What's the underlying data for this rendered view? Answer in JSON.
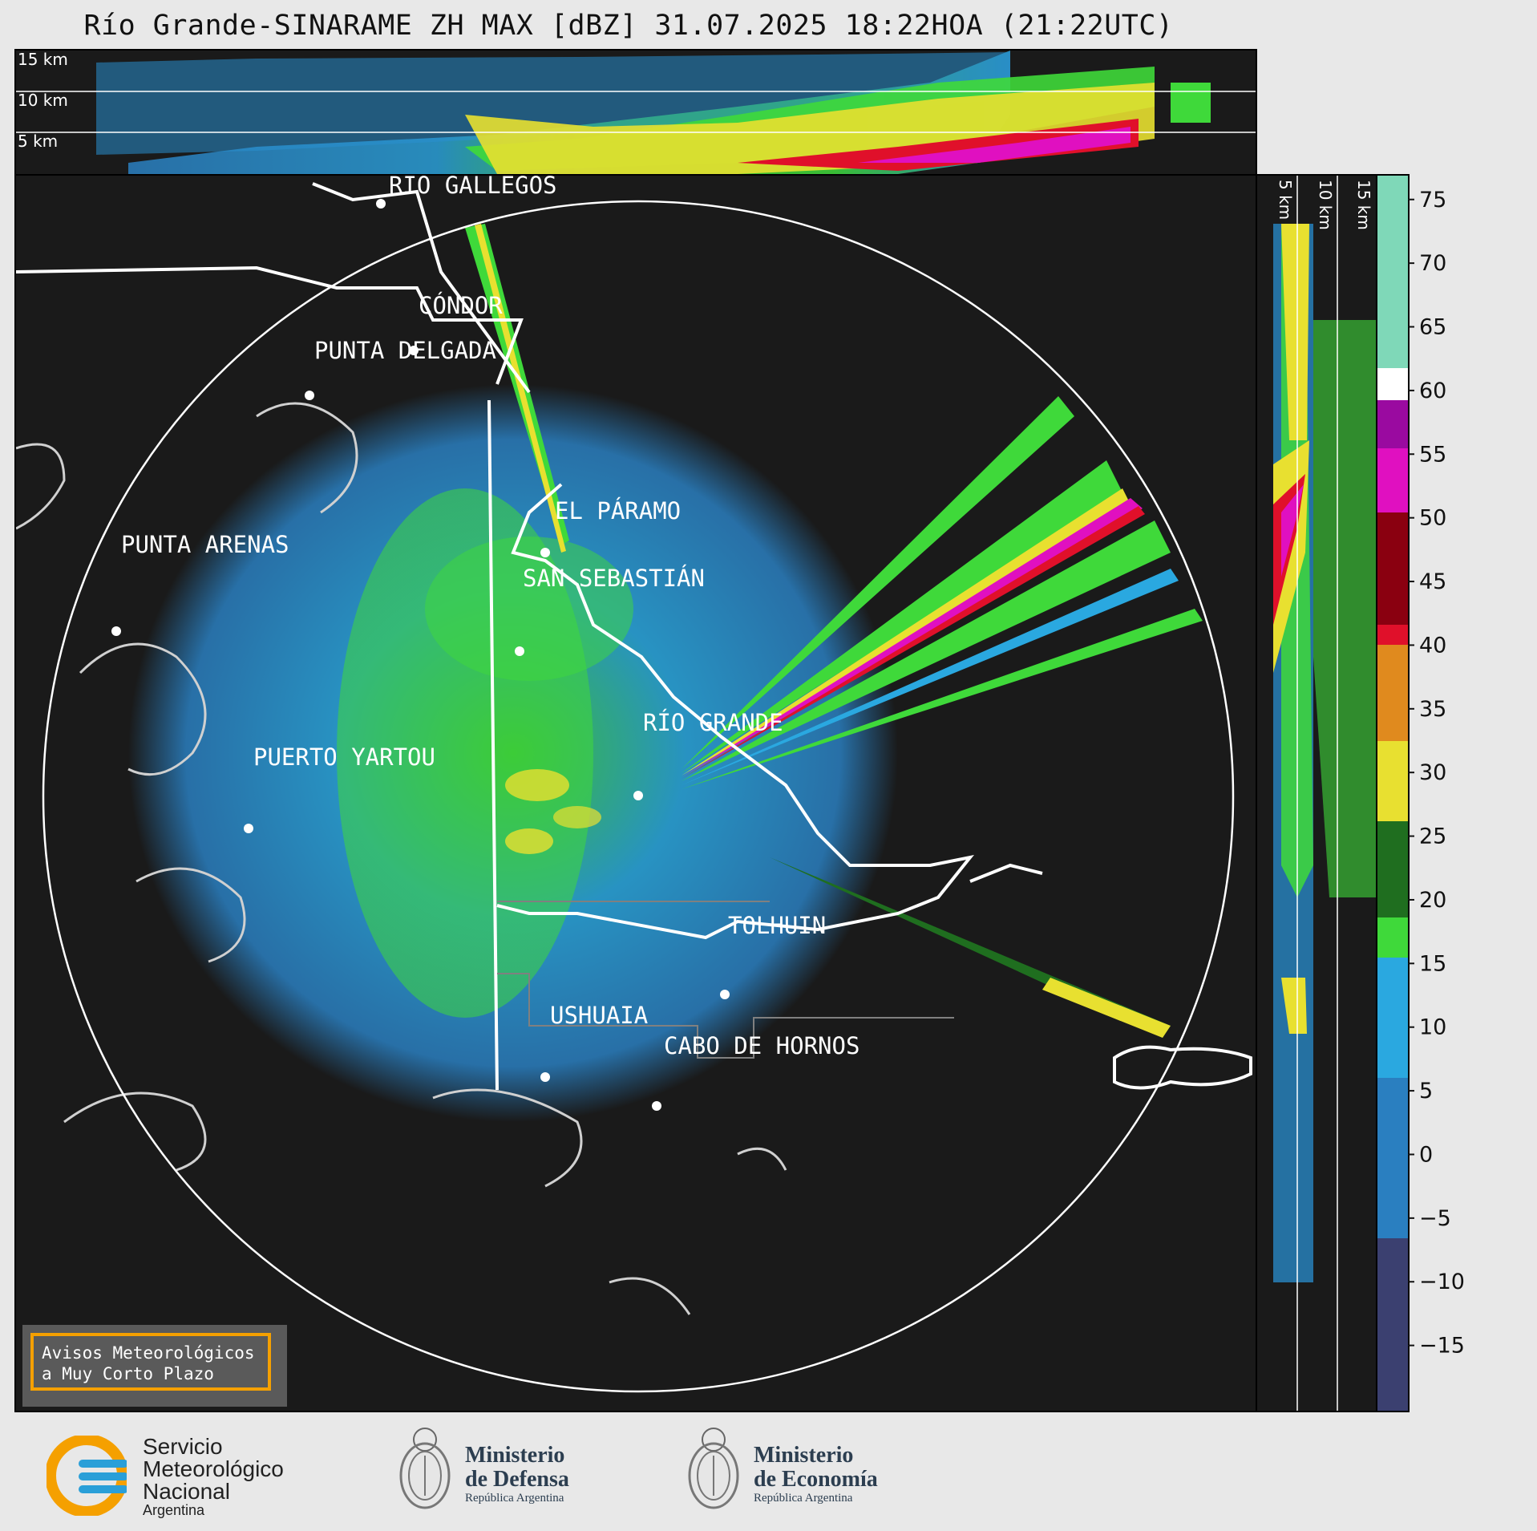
{
  "title": "Río Grande-SINARAME ZH MAX [dBZ] 31.07.2025 18:22HOA (21:22UTC)",
  "top_panel": {
    "height_labels": [
      "15 km",
      "10 km",
      "5 km"
    ]
  },
  "side_panel": {
    "height_labels": [
      "5 km",
      "10 km",
      "15 km"
    ]
  },
  "map": {
    "range_ring": "max range ring",
    "cities": [
      {
        "name": "RÍO GALLEGOS"
      },
      {
        "name": "CÓNDOR"
      },
      {
        "name": "PUNTA DELGADA"
      },
      {
        "name": "EL PÁRAMO"
      },
      {
        "name": "PUNTA ARENAS"
      },
      {
        "name": "SAN SEBASTIÁN"
      },
      {
        "name": "RÍO GRANDE"
      },
      {
        "name": "PUERTO YARTOU"
      },
      {
        "name": "TOLHUIN"
      },
      {
        "name": "USHUAIA"
      },
      {
        "name": "CABO DE HORNOS"
      }
    ]
  },
  "colorbar": {
    "unit": "dBZ",
    "range": [
      -20,
      77
    ],
    "tick_labels": [
      "75",
      "70",
      "65",
      "60",
      "55",
      "50",
      "45",
      "40",
      "35",
      "30",
      "25",
      "20",
      "15",
      "10",
      "5",
      "0",
      "−5",
      "−10",
      "−15"
    ],
    "colors": {
      "dark_blue": "#3b4070",
      "blue": "#2a7fc0",
      "light_blue": "#2aa8e0",
      "green": "#3fd93a",
      "dark_green": "#1f6e1f",
      "yellow": "#e8e030",
      "orange": "#e08a1e",
      "red": "#e0102a",
      "dark_red": "#8a0010",
      "magenta": "#e010c0",
      "purple": "#9a0aa0",
      "white": "#ffffff",
      "teal": "#7fd8b8"
    }
  },
  "avisos": {
    "line1": "Avisos Meteorológicos",
    "line2": "a Muy Corto Plazo"
  },
  "footer": {
    "smn": {
      "line1": "Servicio",
      "line2": "Meteorológico",
      "line3": "Nacional",
      "line4": "Argentina"
    },
    "defensa": {
      "line1": "Ministerio",
      "line2": "de Defensa",
      "sub": "República Argentina"
    },
    "economia": {
      "line1": "Ministerio",
      "line2": "de Economía",
      "sub": "República Argentina"
    }
  }
}
